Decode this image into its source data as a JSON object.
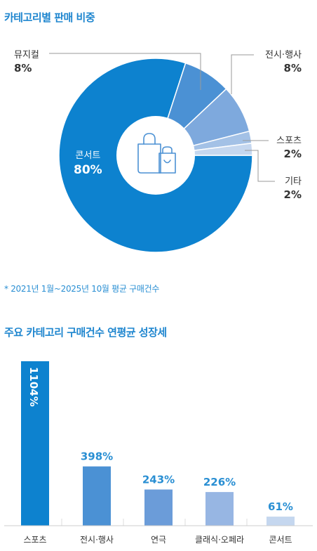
{
  "pie_title": "카테고리별 판매 비중",
  "pie_note": "* 2021년 1월~2025년 10월 평균 구매건수",
  "bar_title": "주요 카테고리 구매건수 연평균 성장세",
  "colors": {
    "accent": "#1f86cf",
    "pie": [
      "#0d82cf",
      "#4b91d4",
      "#7ea9dd",
      "#a3c1e6",
      "#c5d7ef"
    ],
    "bars": [
      "#0d82cf",
      "#4b91d4",
      "#6b9cd9",
      "#97b6e3",
      "#c5d7ef"
    ],
    "bar_values": [
      "#ffffff",
      "#2a8fd3",
      "#2a8fd3",
      "#2a8fd3",
      "#2a8fd3"
    ]
  },
  "center_icon": "shopping-bag-icon",
  "chart_data": [
    {
      "type": "pie",
      "title": "카테고리별 판매 비중",
      "slices": [
        {
          "label": "콘서트",
          "value": 80,
          "display": "80%"
        },
        {
          "label": "뮤지컬",
          "value": 8,
          "display": "8%"
        },
        {
          "label": "전시·행사",
          "value": 8,
          "display": "8%"
        },
        {
          "label": "스포츠",
          "value": 2,
          "display": "2%"
        },
        {
          "label": "기타",
          "value": 2,
          "display": "2%"
        }
      ]
    },
    {
      "type": "bar",
      "title": "주요 카테고리 구매건수 연평균 성장세",
      "categories": [
        "스포츠",
        "전시·행사",
        "연극",
        "클래식·오페라",
        "콘서트"
      ],
      "values": [
        1104,
        398,
        243,
        226,
        61
      ],
      "value_labels": [
        "1104%",
        "398%",
        "243%",
        "226%",
        "61%"
      ],
      "ylim": [
        0,
        1104
      ]
    }
  ]
}
